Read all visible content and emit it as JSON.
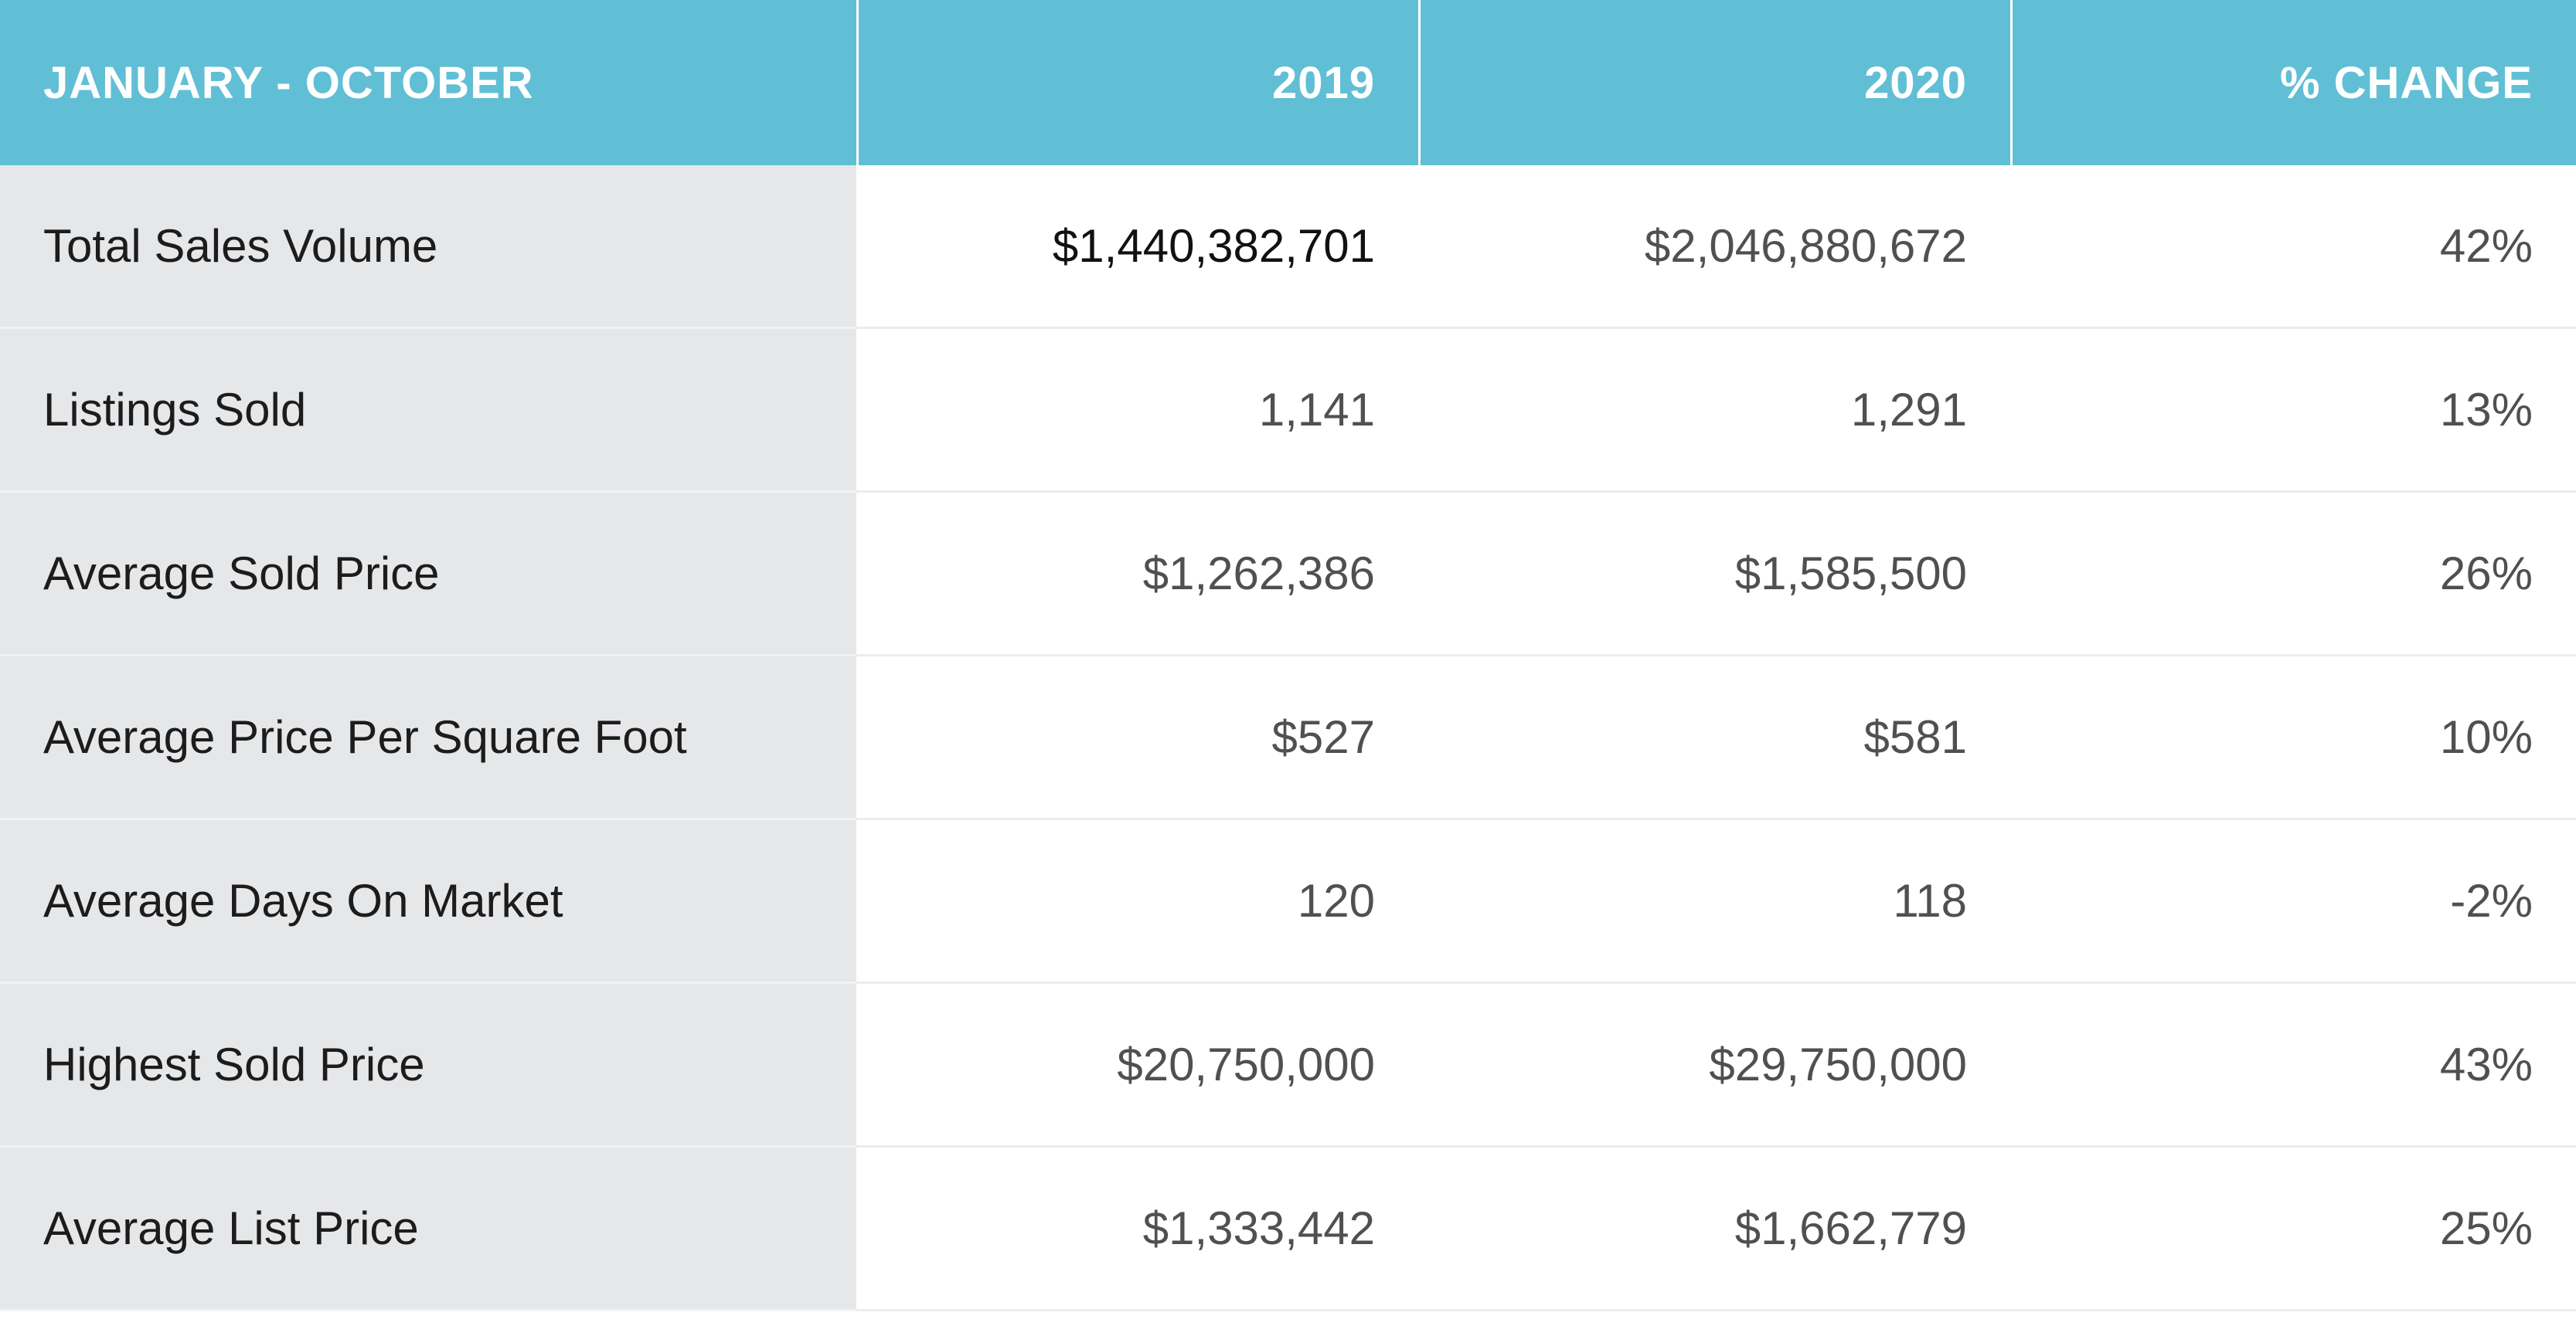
{
  "table": {
    "headers": [
      "JANUARY - OCTOBER",
      "2019",
      "2020",
      "% CHANGE"
    ],
    "rows": [
      {
        "label": "Total Sales Volume",
        "y2019": "$1,440,382,701",
        "y2020": "$2,046,880,672",
        "change": "42%"
      },
      {
        "label": "Listings Sold",
        "y2019": "1,141",
        "y2020": "1,291",
        "change": "13%"
      },
      {
        "label": "Average Sold Price",
        "y2019": "$1,262,386",
        "y2020": "$1,585,500",
        "change": "26%"
      },
      {
        "label": "Average Price Per Square Foot",
        "y2019": "$527",
        "y2020": "$581",
        "change": "10%"
      },
      {
        "label": "Average Days On Market",
        "y2019": "120",
        "y2020": "118",
        "change": "-2%"
      },
      {
        "label": "Highest Sold Price",
        "y2019": "$20,750,000",
        "y2020": "$29,750,000",
        "change": "43%"
      },
      {
        "label": "Average List Price",
        "y2019": "$1,333,442",
        "y2020": "$1,662,779",
        "change": "25%"
      }
    ]
  },
  "colors": {
    "header_bg": "#61bfd5",
    "label_bg": "#e6e7e9",
    "header_text": "#ffffff"
  }
}
